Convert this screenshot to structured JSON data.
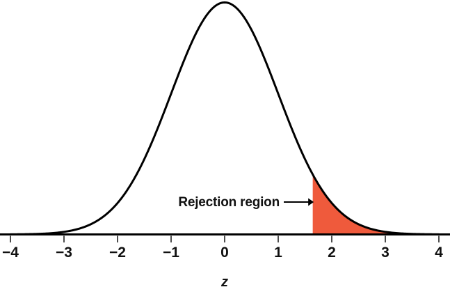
{
  "figure": {
    "annotation_label": "Rejection region",
    "x_axis_label": "z"
  },
  "chart_data": {
    "type": "area",
    "curve": {
      "distribution": "standard-normal",
      "mean": 0,
      "sd": 1,
      "peak_pdf": 0.3989
    },
    "x_range": [
      -4,
      4
    ],
    "x_ticks": [
      -4,
      -3,
      -2,
      -1,
      0,
      1,
      2,
      3,
      4
    ],
    "x_tick_labels": [
      "−4",
      "−3",
      "−2",
      "−1",
      "0",
      "1",
      "2",
      "3",
      "4"
    ],
    "pdf_samples": {
      "z": [
        -4,
        -3,
        -2,
        -1,
        0,
        1,
        2,
        3,
        4
      ],
      "pdf": [
        0.0001,
        0.0044,
        0.054,
        0.242,
        0.3989,
        0.242,
        0.054,
        0.0044,
        0.0001
      ]
    },
    "rejection_region": {
      "from_z": 1.645,
      "to_z": 4,
      "label": "Rejection region",
      "side": "right-tail"
    },
    "xlabel": "z",
    "ylabel": "",
    "grid": false,
    "legend": null
  },
  "colors": {
    "curve": "#000000",
    "axis": "#000000",
    "tick": "#4d4d4d",
    "text": "#111111",
    "rejection_fill": "#EF5A3C",
    "background": "#ffffff"
  }
}
